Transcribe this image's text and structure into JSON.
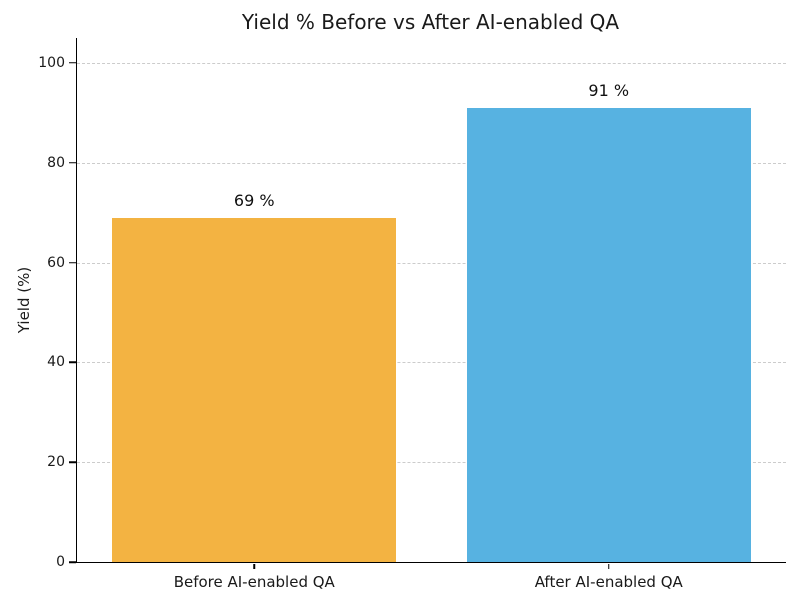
{
  "chart_data": {
    "type": "bar",
    "title": "Yield % Before vs After AI-enabled QA",
    "categories": [
      "Before AI-enabled QA",
      "After AI-enabled QA"
    ],
    "values": [
      69,
      91
    ],
    "value_labels": [
      "69 %",
      "91 %"
    ],
    "bar_colors": [
      "#F3B342",
      "#57B2E1"
    ],
    "xlabel": "",
    "ylabel": "Yield (%)",
    "ylim": [
      0,
      105
    ],
    "yticks": [
      0,
      20,
      40,
      60,
      80,
      100
    ],
    "bar_width_fraction": 0.8,
    "grid": "horizontal-dashed",
    "grid_color": "#cccccc",
    "legend": "none",
    "background_color": "#ffffff",
    "spines": [
      "left",
      "bottom"
    ]
  }
}
